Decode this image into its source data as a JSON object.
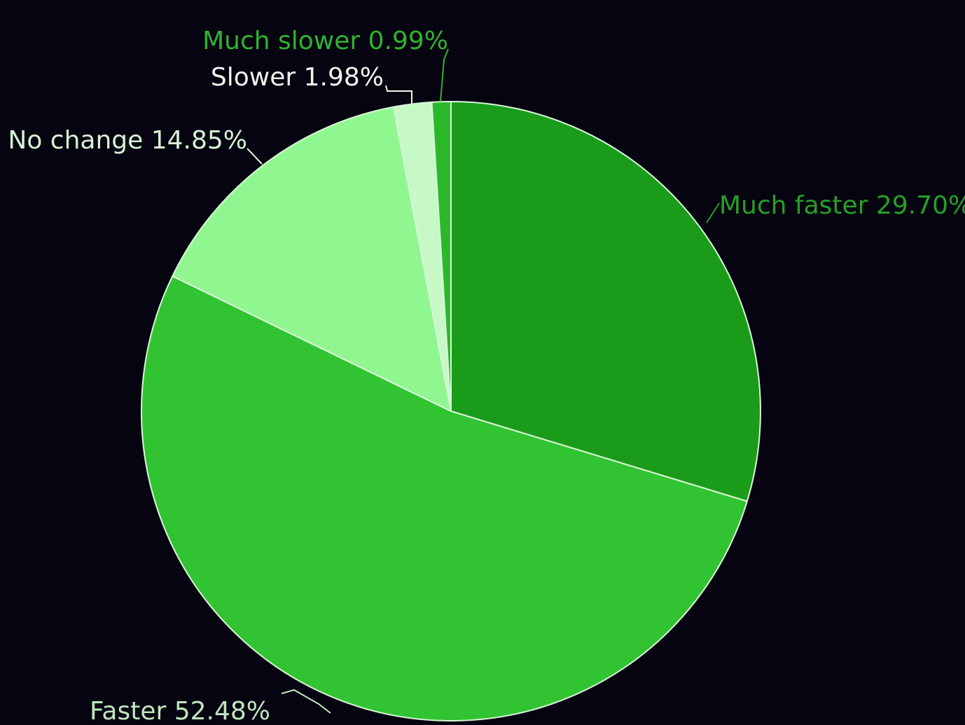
{
  "chart_data": {
    "type": "pie",
    "title": "",
    "categories": [
      "Much faster",
      "Faster",
      "No change",
      "Slower",
      "Much slower"
    ],
    "values": [
      29.7,
      52.48,
      14.85,
      1.98,
      0.99
    ],
    "labels": [
      "Much faster 29.70%",
      "Faster 52.48%",
      "No change 14.85%",
      "Slower 1.98%",
      "Much slower 0.99%"
    ],
    "colors": [
      "#1a9c1a",
      "#32c332",
      "#90f790",
      "#c6f9c6",
      "#2ab82a"
    ],
    "label_colors": [
      "#25a025",
      "#bfe6bf",
      "#d6f2d6",
      "#eef4ee",
      "#2fb42f"
    ],
    "start": "12 o'clock",
    "direction": "clockwise",
    "legend": "none",
    "background": "#060410",
    "slice_border_color": "#d8f6d8"
  }
}
